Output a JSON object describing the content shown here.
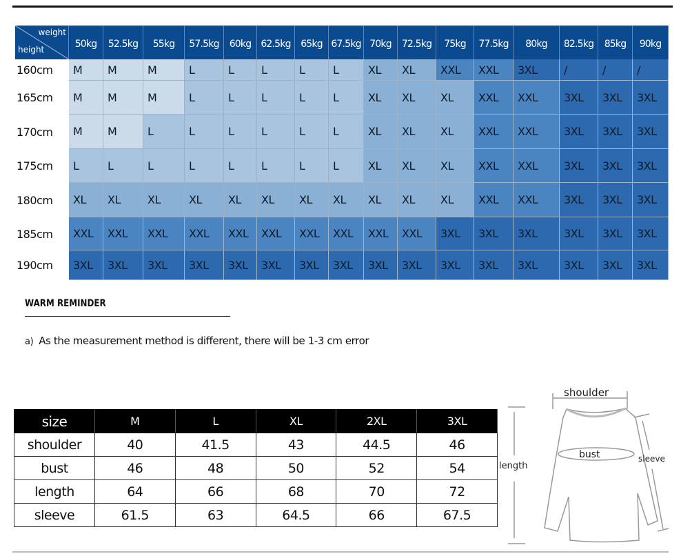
{
  "size_chart": {
    "corner": {
      "weight": "weight",
      "height": "height"
    },
    "weights": [
      "50kg",
      "52.5kg",
      "55kg",
      "57.5kg",
      "60kg",
      "62.5kg",
      "65kg",
      "67.5kg",
      "70kg",
      "72.5kg",
      "75kg",
      "77.5kg",
      "80kg",
      "82.5kg",
      "85kg",
      "90kg"
    ],
    "rows": [
      {
        "height": "160cm",
        "sizes": [
          "M",
          "M",
          "M",
          "L",
          "L",
          "L",
          "L",
          "L",
          "XL",
          "XL",
          "XXL",
          "XXL",
          "3XL",
          "/",
          "/",
          "/"
        ]
      },
      {
        "height": "165cm",
        "sizes": [
          "M",
          "M",
          "M",
          "L",
          "L",
          "L",
          "L",
          "L",
          "XL",
          "XL",
          "XL",
          "XXL",
          "XXL",
          "3XL",
          "3XL",
          "3XL"
        ]
      },
      {
        "height": "170cm",
        "sizes": [
          "M",
          "M",
          "L",
          "L",
          "L",
          "L",
          "L",
          "L",
          "XL",
          "XL",
          "XL",
          "XXL",
          "XXL",
          "3XL",
          "3XL",
          "3XL"
        ]
      },
      {
        "height": "175cm",
        "sizes": [
          "L",
          "L",
          "L",
          "L",
          "L",
          "L",
          "L",
          "L",
          "XL",
          "XL",
          "XL",
          "XXL",
          "XXL",
          "3XL",
          "3XL",
          "3XL"
        ]
      },
      {
        "height": "180cm",
        "sizes": [
          "XL",
          "XL",
          "XL",
          "XL",
          "XL",
          "XL",
          "XL",
          "XL",
          "XL",
          "XL",
          "XL",
          "XXL",
          "XXL",
          "3XL",
          "3XL",
          "3XL"
        ]
      },
      {
        "height": "185cm",
        "sizes": [
          "XXL",
          "XXL",
          "XXL",
          "XXL",
          "XXL",
          "XXL",
          "XXL",
          "XXL",
          "XXL",
          "XXL",
          "3XL",
          "3XL",
          "3XL",
          "3XL",
          "3XL",
          "3XL"
        ]
      },
      {
        "height": "190cm",
        "sizes": [
          "3XL",
          "3XL",
          "3XL",
          "3XL",
          "3XL",
          "3XL",
          "3XL",
          "3XL",
          "3XL",
          "3XL",
          "3XL",
          "3XL",
          "3XL",
          "3XL",
          "3XL",
          "3XL"
        ]
      }
    ],
    "colors": {
      "header": "#0b4a8e",
      "M": "#cbdbea",
      "L": "#a9c4de",
      "XL": "#8ab1d5",
      "XXL": "#4a85c2",
      "3XL": "#2c69ae",
      "/": "#2c69ae"
    }
  },
  "reminder": {
    "title": "WARM REMINDER",
    "marker": "a)",
    "text": "As the measurement method is different, there will be 1-3 cm error"
  },
  "measure_table": {
    "header": [
      "size",
      "M",
      "L",
      "XL",
      "2XL",
      "3XL"
    ],
    "rows": [
      [
        "shoulder",
        "40",
        "41.5",
        "43",
        "44.5",
        "46"
      ],
      [
        "bust",
        "46",
        "48",
        "50",
        "52",
        "54"
      ],
      [
        "length",
        "64",
        "66",
        "68",
        "70",
        "72"
      ],
      [
        "sleeve",
        "61.5",
        "63",
        "64.5",
        "66",
        "67.5"
      ]
    ]
  },
  "diagram": {
    "shoulder": "shoulder",
    "bust": "bust",
    "length": "length",
    "sleeve": "sleeve"
  }
}
